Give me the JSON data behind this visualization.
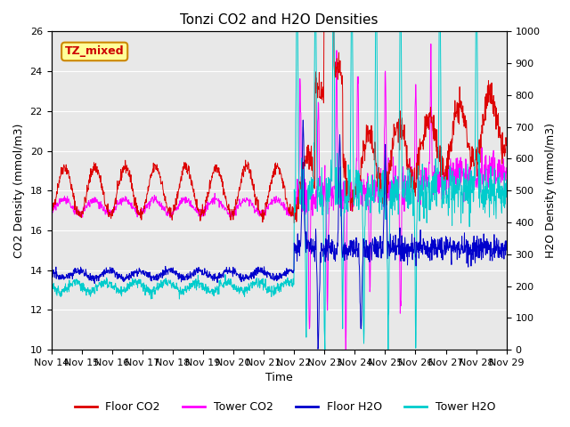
{
  "title": "Tonzi CO2 and H2O Densities",
  "xlabel": "Time",
  "ylabel_left": "CO2 Density (mmol/m3)",
  "ylabel_right": "H2O Density (mmol/m3)",
  "ylim_left": [
    10,
    26
  ],
  "ylim_right": [
    0,
    1000
  ],
  "yticks_left": [
    10,
    12,
    14,
    16,
    18,
    20,
    22,
    24,
    26
  ],
  "yticks_right": [
    0,
    100,
    200,
    300,
    400,
    500,
    600,
    700,
    800,
    900,
    1000
  ],
  "xtick_labels": [
    "Nov 14",
    "Nov 15",
    "Nov 16",
    "Nov 17",
    "Nov 18",
    "Nov 19",
    "Nov 20",
    "Nov 21",
    "Nov 22",
    "Nov 23",
    "Nov 24",
    "Nov 25",
    "Nov 26",
    "Nov 27",
    "Nov 28",
    "Nov 29"
  ],
  "annotation_text": "TZ_mixed",
  "annotation_facecolor": "#FFFF99",
  "annotation_edgecolor": "#CC8800",
  "annotation_textcolor": "#CC0000",
  "floor_co2_color": "#DD0000",
  "tower_co2_color": "#FF00FF",
  "floor_h2o_color": "#0000CC",
  "tower_h2o_color": "#00CCCC",
  "bg_color": "#E8E8E8",
  "legend_labels": [
    "Floor CO2",
    "Tower CO2",
    "Floor H2O",
    "Tower H2O"
  ],
  "n_days": 15,
  "n_pts": 1440,
  "t_trans": 8.0
}
